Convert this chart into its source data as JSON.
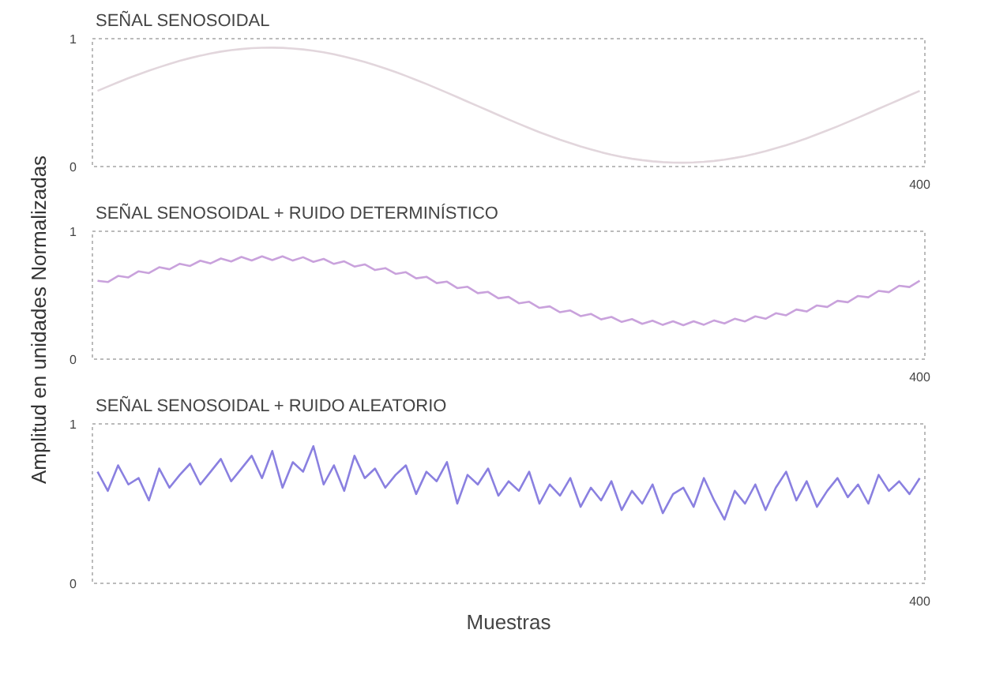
{
  "chart_data": [
    {
      "type": "line",
      "title": "SEÑAL SENOSOIDAL",
      "categories": [
        null,
        null,
        null,
        null,
        null,
        null,
        null,
        null,
        null,
        null,
        null,
        null,
        null,
        null,
        null,
        null,
        null,
        null,
        null,
        null,
        null,
        null,
        null,
        null,
        null,
        null,
        null,
        null,
        null,
        null,
        null,
        null,
        null,
        null,
        null,
        null,
        null,
        null,
        null,
        null,
        null,
        null,
        null,
        null,
        null,
        null,
        null,
        null,
        null,
        null,
        null,
        null,
        null,
        null,
        null,
        null,
        null,
        null,
        null,
        null,
        null,
        null,
        null,
        null,
        null,
        null,
        null,
        null,
        null,
        null,
        null,
        null,
        null,
        null,
        null,
        null,
        null,
        null,
        null,
        null,
        null
      ],
      "ylim": [
        0,
        1
      ],
      "yticks": [
        0,
        1
      ],
      "annotations": [
        "400"
      ],
      "series": [
        {
          "color": "#e2d6dc",
          "values": [
            0.592,
            0.626,
            0.659,
            0.691,
            0.721,
            0.75,
            0.777,
            0.803,
            0.827,
            0.848,
            0.867,
            0.884,
            0.899,
            0.91,
            0.919,
            0.926,
            0.929,
            0.93,
            0.928,
            0.923,
            0.916,
            0.906,
            0.893,
            0.878,
            0.86,
            0.84,
            0.818,
            0.793,
            0.767,
            0.739,
            0.709,
            0.678,
            0.646,
            0.612,
            0.578,
            0.543,
            0.508,
            0.473,
            0.438,
            0.403,
            0.368,
            0.334,
            0.301,
            0.269,
            0.239,
            0.21,
            0.183,
            0.157,
            0.134,
            0.112,
            0.093,
            0.076,
            0.061,
            0.05,
            0.041,
            0.035,
            0.031,
            0.03,
            0.032,
            0.037,
            0.044,
            0.054,
            0.067,
            0.082,
            0.1,
            0.12,
            0.143,
            0.167,
            0.193,
            0.221,
            0.251,
            0.282,
            0.314,
            0.348,
            0.382,
            0.417,
            0.452,
            0.487,
            0.522,
            0.557,
            0.592
          ]
        }
      ]
    },
    {
      "type": "line",
      "title": "SEÑAL SENOSOIDAL + RUIDO DETERMINÍSTICO",
      "ylabel": "Amplitud en unidades Normalizadas",
      "categories": [
        null,
        null,
        null,
        null,
        null,
        null,
        null,
        null,
        null,
        null,
        null,
        null,
        null,
        null,
        null,
        null,
        null,
        null,
        null,
        null,
        null,
        null,
        null,
        null,
        null,
        null,
        null,
        null,
        null,
        null,
        null,
        null,
        null,
        null,
        null,
        null,
        null,
        null,
        null,
        null,
        null,
        null,
        null,
        null,
        null,
        null,
        null,
        null,
        null,
        null,
        null,
        null,
        null,
        null,
        null,
        null,
        null,
        null,
        null,
        null,
        null,
        null,
        null,
        null,
        null,
        null,
        null,
        null,
        null,
        null,
        null,
        null,
        null,
        null,
        null,
        null,
        null,
        null,
        null,
        null,
        null
      ],
      "ylim": [
        0,
        1
      ],
      "yticks": [
        0,
        1
      ],
      "annotations": [
        "400"
      ],
      "series": [
        {
          "color": "#c9a2dc",
          "values": [
            0.613,
            0.603,
            0.651,
            0.639,
            0.687,
            0.673,
            0.719,
            0.703,
            0.746,
            0.729,
            0.77,
            0.749,
            0.787,
            0.764,
            0.799,
            0.772,
            0.804,
            0.775,
            0.804,
            0.771,
            0.797,
            0.761,
            0.784,
            0.745,
            0.765,
            0.724,
            0.741,
            0.697,
            0.712,
            0.667,
            0.68,
            0.632,
            0.644,
            0.595,
            0.606,
            0.556,
            0.566,
            0.516,
            0.526,
            0.476,
            0.487,
            0.437,
            0.449,
            0.401,
            0.413,
            0.367,
            0.381,
            0.337,
            0.354,
            0.311,
            0.33,
            0.291,
            0.313,
            0.276,
            0.301,
            0.268,
            0.296,
            0.265,
            0.296,
            0.269,
            0.303,
            0.279,
            0.316,
            0.295,
            0.335,
            0.316,
            0.359,
            0.343,
            0.388,
            0.373,
            0.42,
            0.408,
            0.456,
            0.445,
            0.494,
            0.484,
            0.534,
            0.524,
            0.574,
            0.564,
            0.613
          ]
        }
      ]
    },
    {
      "type": "line",
      "title": "SEÑAL SENOSOIDAL + RUIDO ALEATORIO",
      "xlabel": "Muestras",
      "categories": [
        null,
        null,
        null,
        null,
        null,
        null,
        null,
        null,
        null,
        null,
        null,
        null,
        null,
        null,
        null,
        null,
        null,
        null,
        null,
        null,
        null,
        null,
        null,
        null,
        null,
        null,
        null,
        null,
        null,
        null,
        null,
        null,
        null,
        null,
        null,
        null,
        null,
        null,
        null,
        null,
        null,
        null,
        null,
        null,
        null,
        null,
        null,
        null,
        null,
        null,
        null,
        null,
        null,
        null,
        null,
        null,
        null,
        null,
        null,
        null,
        null,
        null,
        null,
        null,
        null,
        null,
        null,
        null,
        null,
        null,
        null,
        null,
        null,
        null,
        null,
        null,
        null,
        null,
        null,
        null,
        null
      ],
      "ylim": [
        0,
        1
      ],
      "yticks": [
        0,
        1
      ],
      "annotations": [
        "400"
      ],
      "series": [
        {
          "color": "#8a80e0",
          "values": [
            0.7,
            0.58,
            0.74,
            0.62,
            0.66,
            0.52,
            0.72,
            0.6,
            0.68,
            0.75,
            0.62,
            0.7,
            0.78,
            0.64,
            0.72,
            0.8,
            0.66,
            0.83,
            0.6,
            0.76,
            0.7,
            0.86,
            0.62,
            0.74,
            0.58,
            0.8,
            0.66,
            0.72,
            0.6,
            0.68,
            0.74,
            0.56,
            0.7,
            0.64,
            0.76,
            0.5,
            0.68,
            0.62,
            0.72,
            0.55,
            0.64,
            0.58,
            0.7,
            0.5,
            0.62,
            0.55,
            0.66,
            0.48,
            0.6,
            0.52,
            0.64,
            0.46,
            0.58,
            0.5,
            0.62,
            0.44,
            0.56,
            0.6,
            0.48,
            0.66,
            0.52,
            0.4,
            0.58,
            0.5,
            0.62,
            0.46,
            0.6,
            0.7,
            0.52,
            0.64,
            0.48,
            0.58,
            0.66,
            0.54,
            0.62,
            0.5,
            0.68,
            0.58,
            0.64,
            0.56,
            0.66
          ]
        }
      ]
    }
  ]
}
